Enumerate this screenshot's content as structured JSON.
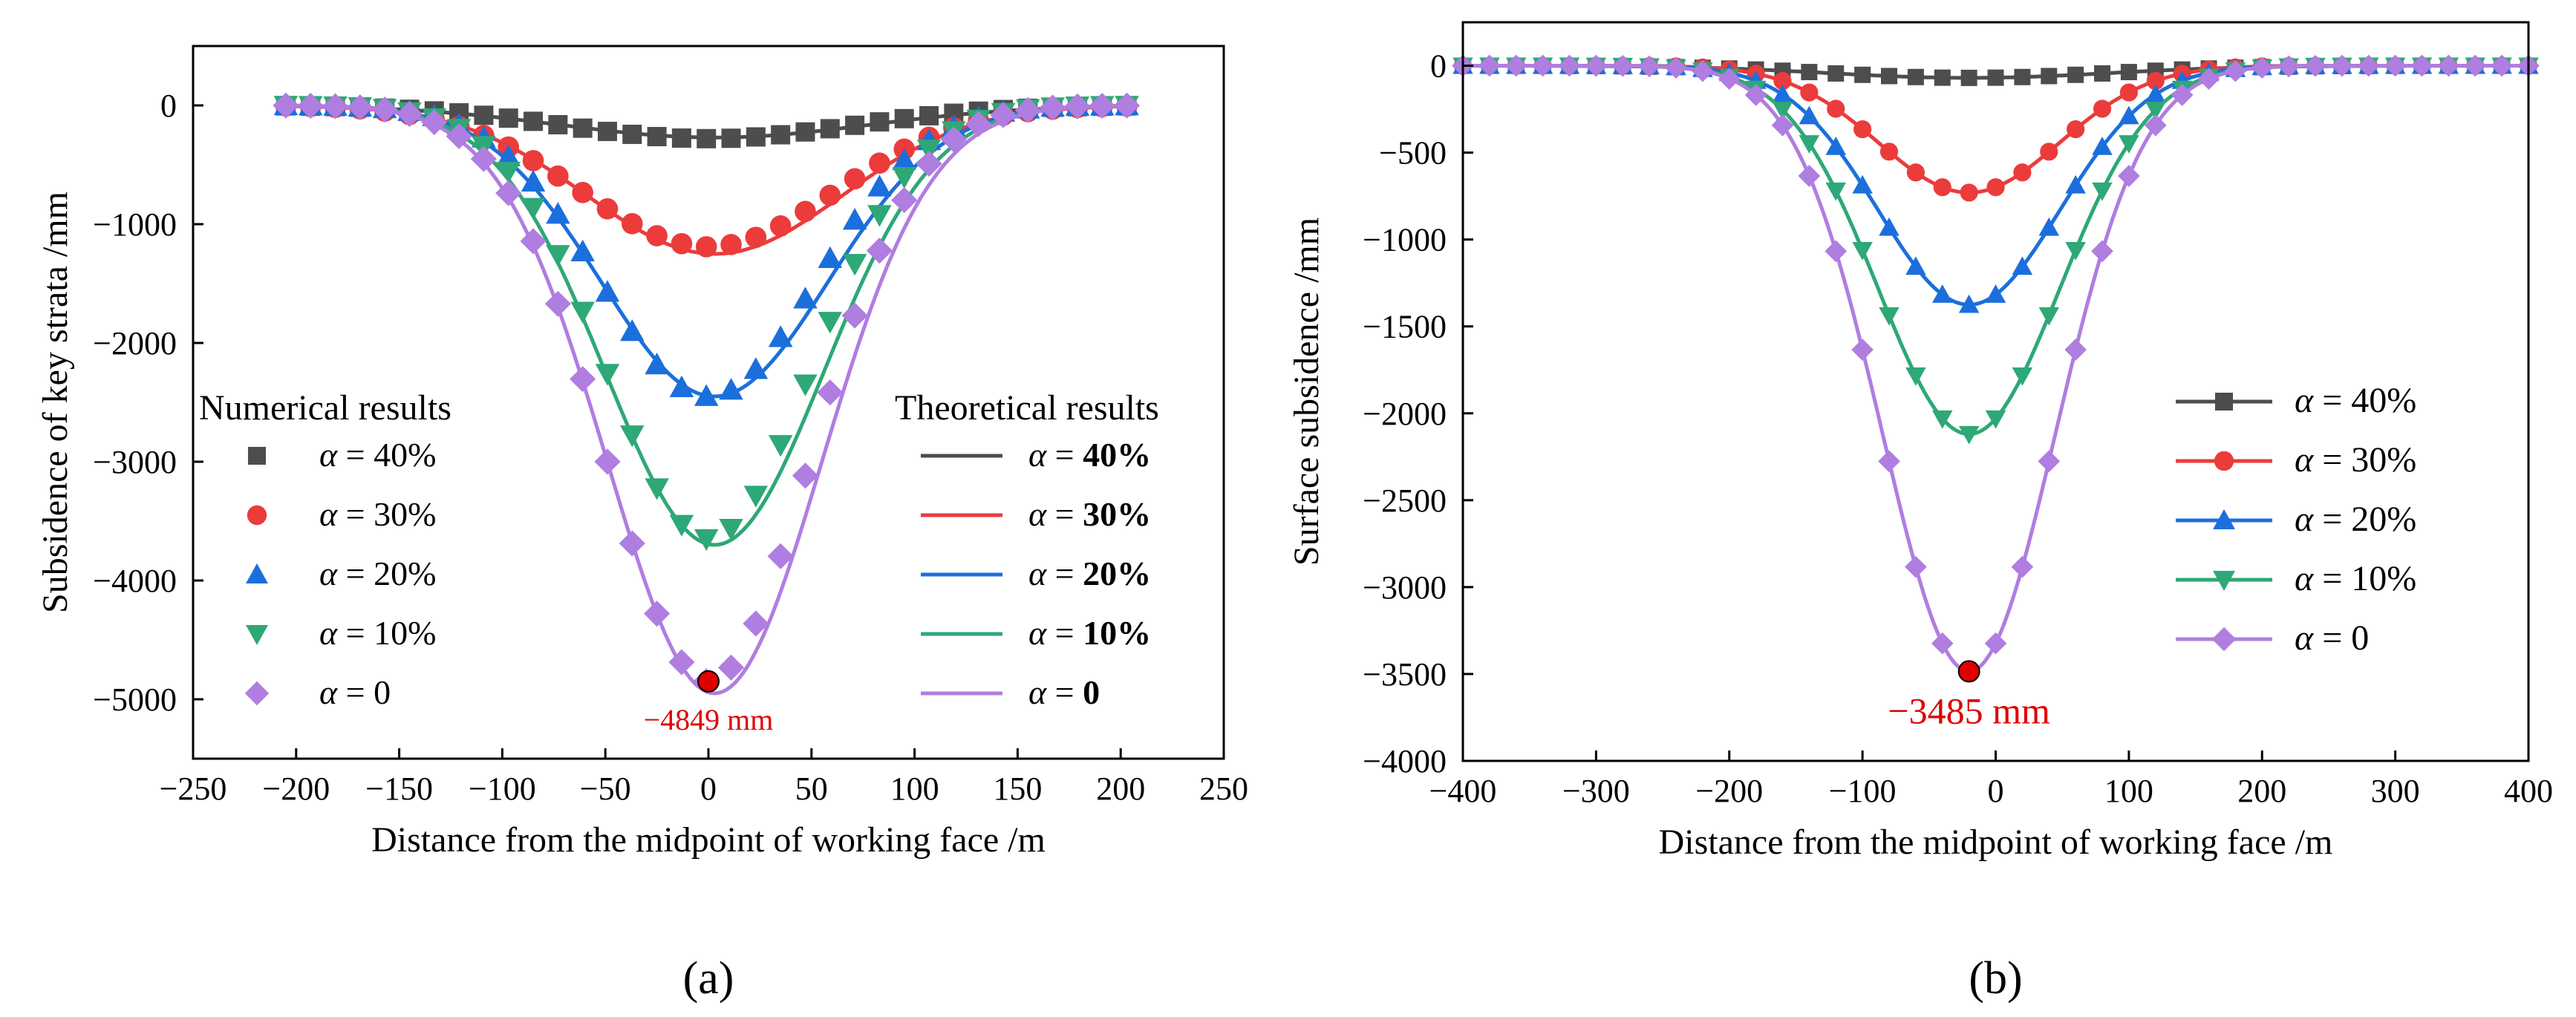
{
  "colors": {
    "a40": "#4d4d4d",
    "a30": "#ec3b3b",
    "a20": "#1b6fdc",
    "a10": "#2ea876",
    "a0": "#b07de0",
    "annotation": "#e00000"
  },
  "chart_data": [
    {
      "panel": "(a)",
      "type": "scatter+line",
      "xlabel": "Distance from the midpoint of working face /m",
      "ylabel": "Subsidence of key strata /mm",
      "xlim": [
        -250,
        250
      ],
      "ylim": [
        -5500,
        500
      ],
      "xticks": [
        -250,
        -200,
        -150,
        -100,
        -50,
        0,
        50,
        100,
        150,
        200,
        250
      ],
      "xtick_labels": [
        "−250",
        "−200",
        "−150",
        "−100",
        "−50",
        "0",
        "50",
        "100",
        "150",
        "200",
        "250"
      ],
      "yticks": [
        0,
        -1000,
        -2000,
        -3000,
        -4000,
        -5000
      ],
      "ytick_labels": [
        "0",
        "−1000",
        "−2000",
        "−3000",
        "−4000",
        "−5000"
      ],
      "legend_numerical_title": "Numerical results",
      "legend_theoretical_title": "Theoretical results",
      "alpha_symbol": "α",
      "equals": "=",
      "series": [
        {
          "name": "α = 40%",
          "value_label": "40%",
          "marker": "square",
          "color_key": "a40",
          "peak": -280,
          "sigma": 70,
          "line_peak": -270,
          "line_sigma": 75
        },
        {
          "name": "α = 30%",
          "value_label": "30%",
          "marker": "circle",
          "color_key": "a30",
          "peak": -1190,
          "sigma": 62,
          "line_peak": -1250,
          "line_sigma": 62
        },
        {
          "name": "α = 20%",
          "value_label": "20%",
          "marker": "triangle-up",
          "color_key": "a20",
          "peak": -2450,
          "sigma": 52,
          "line_peak": -2450,
          "line_sigma": 55
        },
        {
          "name": "α = 10%",
          "value_label": "10%",
          "marker": "triangle-down",
          "color_key": "a10",
          "peak": -3650,
          "sigma": 50,
          "line_peak": -3700,
          "line_sigma": 53
        },
        {
          "name": "α = 0",
          "value_label": "0",
          "marker": "diamond",
          "color_key": "a0",
          "peak": -4849,
          "sigma": 50,
          "line_peak": -4950,
          "line_sigma": 52
        }
      ],
      "x_points_start": -205,
      "x_points_end": 205,
      "x_points_step": 12,
      "annotation": {
        "text": "−4849 mm",
        "x": 0,
        "y": -4849
      },
      "panel_label": "(a)"
    },
    {
      "panel": "(b)",
      "type": "line",
      "xlabel": "Distance from the midpoint of working face /m",
      "ylabel": "Surface subsidence /mm",
      "xlim": [
        -400,
        400
      ],
      "ylim": [
        -4000,
        250
      ],
      "xticks": [
        -400,
        -300,
        -200,
        -100,
        0,
        100,
        200,
        300,
        400
      ],
      "xtick_labels": [
        "−400",
        "−300",
        "−200",
        "−100",
        "0",
        "100",
        "200",
        "300",
        "400"
      ],
      "yticks": [
        0,
        -500,
        -1000,
        -1500,
        -2000,
        -2500,
        -3000,
        -3500,
        -4000
      ],
      "ytick_labels": [
        "0",
        "−500",
        "−1000",
        "−1500",
        "−2000",
        "−2500",
        "−3000",
        "−3500",
        "−4000"
      ],
      "alpha_symbol": "α",
      "equals": "=",
      "series": [
        {
          "name": "α = 40%",
          "value_label": "40%",
          "marker": "square",
          "color_key": "a40",
          "peak": -70,
          "sigma": 105,
          "center": -20
        },
        {
          "name": "α = 30%",
          "value_label": "30%",
          "marker": "circle",
          "color_key": "a30",
          "peak": -730,
          "sigma": 68,
          "center": -20
        },
        {
          "name": "α = 20%",
          "value_label": "20%",
          "marker": "triangle-up",
          "color_key": "a20",
          "peak": -1375,
          "sigma": 68,
          "center": -20
        },
        {
          "name": "α = 10%",
          "value_label": "10%",
          "marker": "triangle-down",
          "color_key": "a10",
          "peak": -2120,
          "sigma": 68,
          "center": -20
        },
        {
          "name": "α = 0",
          "value_label": "0",
          "marker": "diamond",
          "color_key": "a0",
          "peak": -3485,
          "sigma": 65,
          "center": -20
        }
      ],
      "x_points_start": -400,
      "x_points_end": 400,
      "x_points_step": 20,
      "annotation": {
        "text": "−3485 mm",
        "x": -20,
        "y": -3485
      },
      "panel_label": "(b)"
    }
  ]
}
